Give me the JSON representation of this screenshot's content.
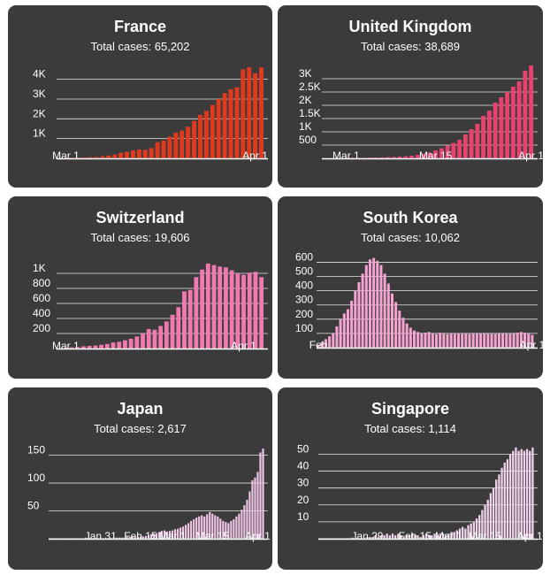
{
  "chart_data": [
    {
      "type": "bar",
      "title": "France",
      "subtitle_label": "Total cases:",
      "total_cases": "65,202",
      "color": "#e03a1e",
      "ylim": [
        0,
        4700
      ],
      "yticks": [
        1000,
        2000,
        3000,
        4000
      ],
      "ytick_labels": [
        "1K",
        "2K",
        "3K",
        "4K"
      ],
      "xtick_labels": [
        {
          "index": 0,
          "label": "Mar 1"
        },
        {
          "index": 31,
          "label": "Apr 1"
        }
      ],
      "values": [
        10,
        20,
        30,
        40,
        60,
        70,
        110,
        140,
        190,
        280,
        330,
        400,
        450,
        430,
        520,
        820,
        900,
        1100,
        1300,
        1400,
        1600,
        1900,
        2200,
        2400,
        2700,
        3000,
        3300,
        3500,
        3600,
        4500,
        4600,
        4300,
        4600
      ]
    },
    {
      "type": "bar",
      "title": "United Kingdom",
      "subtitle_label": "Total cases:",
      "total_cases": "38,689",
      "color": "#e8436e",
      "ylim": [
        0,
        3500
      ],
      "yticks": [
        500,
        1000,
        1500,
        2000,
        2500,
        3000
      ],
      "ytick_labels": [
        "500",
        "1K",
        "1.5K",
        "2K",
        "2.5K",
        "3K"
      ],
      "xtick_labels": [
        {
          "index": 0,
          "label": "Mar 1"
        },
        {
          "index": 15,
          "label": "Mar 15"
        },
        {
          "index": 31,
          "label": "Apr 1"
        }
      ],
      "values": [
        5,
        10,
        15,
        20,
        25,
        30,
        35,
        45,
        55,
        65,
        80,
        100,
        130,
        170,
        220,
        300,
        380,
        480,
        580,
        700,
        900,
        1100,
        1300,
        1600,
        1800,
        2100,
        2300,
        2500,
        2700,
        2900,
        3300,
        3500
      ]
    },
    {
      "type": "bar",
      "title": "Switzerland",
      "subtitle_label": "Total cases:",
      "total_cases": "19,606",
      "color": "#f07ab0",
      "ylim": [
        0,
        1200
      ],
      "yticks": [
        200,
        400,
        600,
        800,
        1000
      ],
      "ytick_labels": [
        "200",
        "400",
        "600",
        "800",
        "1K"
      ],
      "xtick_labels": [
        {
          "index": 0,
          "label": "Mar 1"
        },
        {
          "index": 30,
          "label": "Apr 1"
        }
      ],
      "values": [
        10,
        15,
        20,
        30,
        35,
        40,
        50,
        60,
        80,
        90,
        110,
        130,
        160,
        200,
        260,
        250,
        300,
        360,
        450,
        550,
        760,
        780,
        950,
        1050,
        1130,
        1110,
        1090,
        1080,
        1040,
        1000,
        980,
        1010,
        1020,
        950
      ]
    },
    {
      "type": "bar",
      "title": "South Korea",
      "subtitle_label": "Total cases:",
      "total_cases": "10,062",
      "color": "#f5a3d0",
      "ylim": [
        0,
        640
      ],
      "yticks": [
        100,
        200,
        300,
        400,
        500,
        600
      ],
      "ytick_labels": [
        "100",
        "200",
        "300",
        "400",
        "500",
        "600"
      ],
      "xtick_labels": [
        {
          "index": 0,
          "label": "Feb"
        },
        {
          "index": 58,
          "label": "Apr 1"
        }
      ],
      "values": [
        20,
        40,
        60,
        80,
        100,
        150,
        200,
        240,
        270,
        330,
        400,
        460,
        520,
        580,
        620,
        630,
        610,
        580,
        520,
        450,
        380,
        320,
        260,
        210,
        170,
        140,
        120,
        110,
        100,
        105,
        110,
        100,
        95,
        105,
        100,
        95,
        100,
        98,
        102,
        97,
        100,
        96,
        99,
        100,
        101,
        98,
        100,
        97,
        96,
        99,
        100,
        98,
        97,
        100,
        105,
        110,
        105,
        100,
        90
      ]
    },
    {
      "type": "bar",
      "title": "Japan",
      "subtitle_label": "Total cases:",
      "total_cases": "2,617",
      "color": "#f0c6e6",
      "ylim": [
        0,
        170
      ],
      "yticks": [
        50,
        100,
        150
      ],
      "ytick_labels": [
        "50",
        "100",
        "150"
      ],
      "xtick_labels": [
        {
          "index": 19,
          "label": "Jan 31"
        },
        {
          "index": 34,
          "label": "Feb 15"
        },
        {
          "index": 46,
          "label": "Mar 1"
        },
        {
          "index": 61,
          "label": "Mar 15"
        },
        {
          "index": 78,
          "label": "Apr 1"
        }
      ],
      "values": [
        0,
        0,
        0,
        0,
        0,
        0,
        0,
        0,
        0,
        0,
        0,
        0,
        0,
        0,
        0,
        0,
        0,
        1,
        1,
        1,
        1,
        1,
        1,
        1,
        2,
        2,
        2,
        2,
        2,
        3,
        3,
        3,
        3,
        3,
        4,
        4,
        5,
        6,
        8,
        9,
        10,
        12,
        14,
        15,
        13,
        14,
        15,
        17,
        18,
        20,
        22,
        25,
        28,
        32,
        35,
        38,
        40,
        42,
        40,
        44,
        48,
        45,
        42,
        40,
        36,
        32,
        30,
        28,
        32,
        35,
        40,
        45,
        52,
        60,
        70,
        85,
        105,
        110,
        120,
        155,
        162
      ]
    },
    {
      "type": "bar",
      "title": "Singapore",
      "subtitle_label": "Total cases:",
      "total_cases": "1,114",
      "color": "#f2d3ec",
      "ylim": [
        0,
        56
      ],
      "yticks": [
        10,
        20,
        30,
        40,
        50
      ],
      "ytick_labels": [
        "10",
        "20",
        "30",
        "40",
        "50"
      ],
      "xtick_labels": [
        {
          "index": 17,
          "label": "Jan 29"
        },
        {
          "index": 34,
          "label": "Feb 15"
        },
        {
          "index": 46,
          "label": "Mar 1"
        },
        {
          "index": 59,
          "label": "Mar 15"
        },
        {
          "index": 75,
          "label": "Apr 1"
        }
      ],
      "values": [
        0,
        0,
        0,
        0,
        0,
        0,
        0,
        0,
        0,
        0,
        0,
        0,
        0,
        0,
        0,
        0,
        0,
        1,
        1,
        1,
        2,
        1,
        2,
        2,
        3,
        2,
        3,
        2,
        3,
        2,
        1,
        2,
        2,
        3,
        2,
        2,
        1,
        2,
        3,
        2,
        2,
        3,
        2,
        3,
        3,
        2,
        3,
        4,
        4,
        5,
        6,
        7,
        6,
        8,
        9,
        10,
        12,
        14,
        17,
        20,
        23,
        27,
        30,
        35,
        38,
        42,
        45,
        47,
        50,
        52,
        54,
        52,
        53,
        52,
        53,
        52,
        54
      ]
    }
  ]
}
